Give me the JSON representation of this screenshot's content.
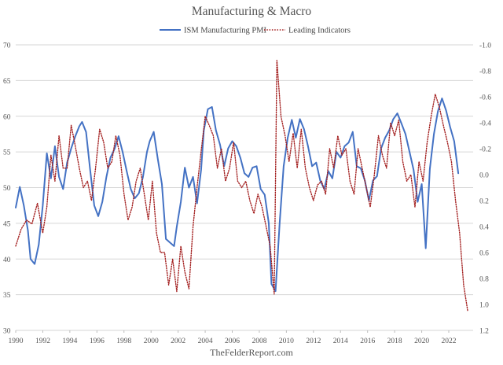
{
  "chart_data": {
    "type": "line",
    "title": "Manufacturing & Macro",
    "source": "TheFelderReport.com",
    "legend_position": "top-center",
    "grid": true,
    "xlim": [
      1990,
      2023.8
    ],
    "x_ticks": [
      "1990",
      "1992",
      "1994",
      "1996",
      "1998",
      "2000",
      "2002",
      "2004",
      "2006",
      "2008",
      "2010",
      "2012",
      "2014",
      "2016",
      "2018",
      "2020",
      "2022"
    ],
    "y_left": {
      "lim": [
        30,
        70
      ],
      "ticks": [
        "30",
        "35",
        "40",
        "45",
        "50",
        "55",
        "60",
        "65",
        "70"
      ]
    },
    "y_right": {
      "lim": [
        1.2,
        -1.0
      ],
      "inverted": true,
      "ticks": [
        "1.2",
        "1.0",
        "0.8",
        "0.6",
        "0.4",
        "0.2",
        "0.0",
        "-0.2",
        "-0.4",
        "-0.6",
        "-0.8",
        "-1.0"
      ]
    },
    "series": [
      {
        "name": "ISM Manufacturing PMI",
        "axis": "left",
        "color": "#4472C4",
        "style": "solid",
        "x": [
          1990,
          1990.3,
          1990.6,
          1990.9,
          1991.1,
          1991.4,
          1991.7,
          1992.0,
          1992.3,
          1992.6,
          1992.9,
          1993.2,
          1993.5,
          1993.8,
          1994.1,
          1994.4,
          1994.7,
          1994.9,
          1995.2,
          1995.5,
          1995.8,
          1996.1,
          1996.4,
          1996.7,
          1997.0,
          1997.3,
          1997.6,
          1997.9,
          1998.2,
          1998.5,
          1998.8,
          1999.1,
          1999.4,
          1999.7,
          1999.9,
          2000.2,
          2000.5,
          2000.8,
          2001.1,
          2001.4,
          2001.7,
          2001.9,
          2002.2,
          2002.5,
          2002.8,
          2003.1,
          2003.4,
          2003.7,
          2003.9,
          2004.2,
          2004.5,
          2004.8,
          2005.1,
          2005.4,
          2005.7,
          2006.0,
          2006.3,
          2006.6,
          2006.9,
          2007.2,
          2007.5,
          2007.8,
          2008.1,
          2008.4,
          2008.7,
          2008.9,
          2009.2,
          2009.5,
          2009.8,
          2010.1,
          2010.4,
          2010.7,
          2011.0,
          2011.3,
          2011.6,
          2011.9,
          2012.2,
          2012.5,
          2012.8,
          2013.1,
          2013.4,
          2013.7,
          2014.0,
          2014.3,
          2014.6,
          2014.9,
          2015.2,
          2015.5,
          2015.8,
          2016.1,
          2016.4,
          2016.7,
          2017.0,
          2017.3,
          2017.6,
          2017.9,
          2018.2,
          2018.5,
          2018.8,
          2019.1,
          2019.4,
          2019.7,
          2020.0,
          2020.3,
          2020.6,
          2020.9,
          2021.2,
          2021.5,
          2021.8,
          2022.1,
          2022.4,
          2022.7
        ],
        "values": [
          47.2,
          50.1,
          47.5,
          44.0,
          40.0,
          39.3,
          42.0,
          47.5,
          54.8,
          51.3,
          55.8,
          51.5,
          49.8,
          53.5,
          55.5,
          57.2,
          58.6,
          59.2,
          57.8,
          52.5,
          47.5,
          46.0,
          48.0,
          51.5,
          54.2,
          55.4,
          57.2,
          55.0,
          52.3,
          49.8,
          48.5,
          49.2,
          51.5,
          55.0,
          56.5,
          57.8,
          54.0,
          50.5,
          42.8,
          42.3,
          41.8,
          44.5,
          48.0,
          52.8,
          50.0,
          51.5,
          47.8,
          52.5,
          58.0,
          61.0,
          61.3,
          58.0,
          56.0,
          53.0,
          55.5,
          56.5,
          55.8,
          54.2,
          52.0,
          51.5,
          52.8,
          53.0,
          49.8,
          49.0,
          45.0,
          36.5,
          35.5,
          45.0,
          53.0,
          57.0,
          59.5,
          57.0,
          59.6,
          58.2,
          55.8,
          53.0,
          53.5,
          51.0,
          49.8,
          52.3,
          51.3,
          55.0,
          54.2,
          55.8,
          56.3,
          57.8,
          53.0,
          52.7,
          51.0,
          48.2,
          51.0,
          51.6,
          55.5,
          57.0,
          58.0,
          59.6,
          60.4,
          59.0,
          57.5,
          55.0,
          52.5,
          48.0,
          50.5,
          41.5,
          52.6,
          57.5,
          60.7,
          62.5,
          60.8,
          58.5,
          56.5,
          52.0
        ]
      },
      {
        "name": "Leading Indicators",
        "axis": "right",
        "color": "#A31F1F",
        "style": "dotted",
        "x": [
          1990,
          1990.4,
          1990.8,
          1991.2,
          1991.6,
          1992.0,
          1992.3,
          1992.6,
          1992.9,
          1993.2,
          1993.5,
          1993.8,
          1994.1,
          1994.4,
          1994.7,
          1995.0,
          1995.3,
          1995.6,
          1995.9,
          1996.2,
          1996.5,
          1996.8,
          1997.1,
          1997.4,
          1997.7,
          1998.0,
          1998.3,
          1998.6,
          1998.9,
          1999.2,
          1999.5,
          1999.8,
          2000.1,
          2000.4,
          2000.7,
          2001.0,
          2001.3,
          2001.6,
          2001.9,
          2002.2,
          2002.5,
          2002.8,
          2003.1,
          2003.4,
          2003.7,
          2004.0,
          2004.3,
          2004.6,
          2004.9,
          2005.2,
          2005.5,
          2005.8,
          2006.1,
          2006.4,
          2006.7,
          2007.0,
          2007.3,
          2007.6,
          2007.9,
          2008.2,
          2008.5,
          2008.8,
          2009.1,
          2009.3,
          2009.6,
          2009.9,
          2010.2,
          2010.5,
          2010.8,
          2011.1,
          2011.4,
          2011.7,
          2012.0,
          2012.3,
          2012.6,
          2012.9,
          2013.2,
          2013.5,
          2013.8,
          2014.1,
          2014.4,
          2014.7,
          2015.0,
          2015.3,
          2015.6,
          2015.9,
          2016.2,
          2016.5,
          2016.8,
          2017.1,
          2017.4,
          2017.7,
          2018.0,
          2018.3,
          2018.6,
          2018.9,
          2019.2,
          2019.5,
          2019.8,
          2020.1,
          2020.4,
          2020.7,
          2021.0,
          2021.3,
          2021.6,
          2021.9,
          2022.2,
          2022.5,
          2022.8,
          2023.1,
          2023.4
        ],
        "values": [
          0.55,
          0.42,
          0.35,
          0.38,
          0.22,
          0.45,
          0.25,
          -0.15,
          0.05,
          -0.3,
          -0.05,
          -0.05,
          -0.38,
          -0.22,
          -0.05,
          0.1,
          0.05,
          0.2,
          -0.05,
          -0.35,
          -0.25,
          -0.05,
          -0.1,
          -0.3,
          -0.15,
          0.15,
          0.35,
          0.25,
          0.05,
          -0.05,
          0.15,
          0.35,
          0.05,
          0.45,
          0.6,
          0.6,
          0.85,
          0.65,
          0.9,
          0.55,
          0.75,
          0.88,
          0.4,
          0.1,
          -0.18,
          -0.45,
          -0.38,
          -0.3,
          -0.05,
          -0.2,
          0.05,
          -0.05,
          -0.25,
          0.05,
          0.1,
          0.05,
          0.2,
          0.3,
          0.15,
          0.25,
          0.4,
          0.55,
          0.92,
          -0.88,
          -0.45,
          -0.3,
          -0.1,
          -0.32,
          -0.05,
          -0.35,
          -0.05,
          0.1,
          0.2,
          0.08,
          0.05,
          0.15,
          -0.2,
          -0.05,
          -0.3,
          -0.15,
          -0.2,
          0.05,
          0.15,
          -0.2,
          -0.05,
          0.1,
          0.25,
          0.0,
          -0.3,
          -0.15,
          -0.05,
          -0.4,
          -0.3,
          -0.42,
          -0.1,
          0.05,
          0.0,
          0.25,
          -0.1,
          0.05,
          -0.25,
          -0.45,
          -0.62,
          -0.52,
          -0.38,
          -0.25,
          -0.1,
          0.2,
          0.45,
          0.85,
          1.05
        ]
      }
    ]
  }
}
